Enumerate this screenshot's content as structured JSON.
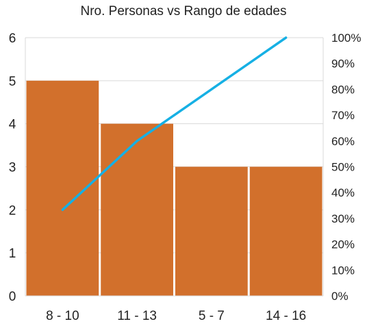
{
  "chart_data": {
    "type": "bar",
    "title": "Nro. Personas vs Rango de edades",
    "categories": [
      "8 - 10",
      "11 - 13",
      "5 - 7",
      "14 - 16"
    ],
    "series": [
      {
        "type": "bar",
        "values": [
          5,
          4,
          3,
          3
        ],
        "color": "#D2702C",
        "axis": "left"
      },
      {
        "type": "line",
        "values": [
          0.3333,
          0.6,
          0.8,
          1.0
        ],
        "color": "#16B0E4",
        "axis": "right"
      }
    ],
    "y_left": {
      "min": 0,
      "max": 6,
      "ticks": [
        "0",
        "1",
        "2",
        "3",
        "4",
        "5",
        "6"
      ]
    },
    "y_right": {
      "min": 0,
      "max": 1,
      "ticks": [
        "0%",
        "10%",
        "20%",
        "30%",
        "40%",
        "50%",
        "60%",
        "70%",
        "80%",
        "90%",
        "100%"
      ]
    },
    "grid": true,
    "legend": "none"
  }
}
